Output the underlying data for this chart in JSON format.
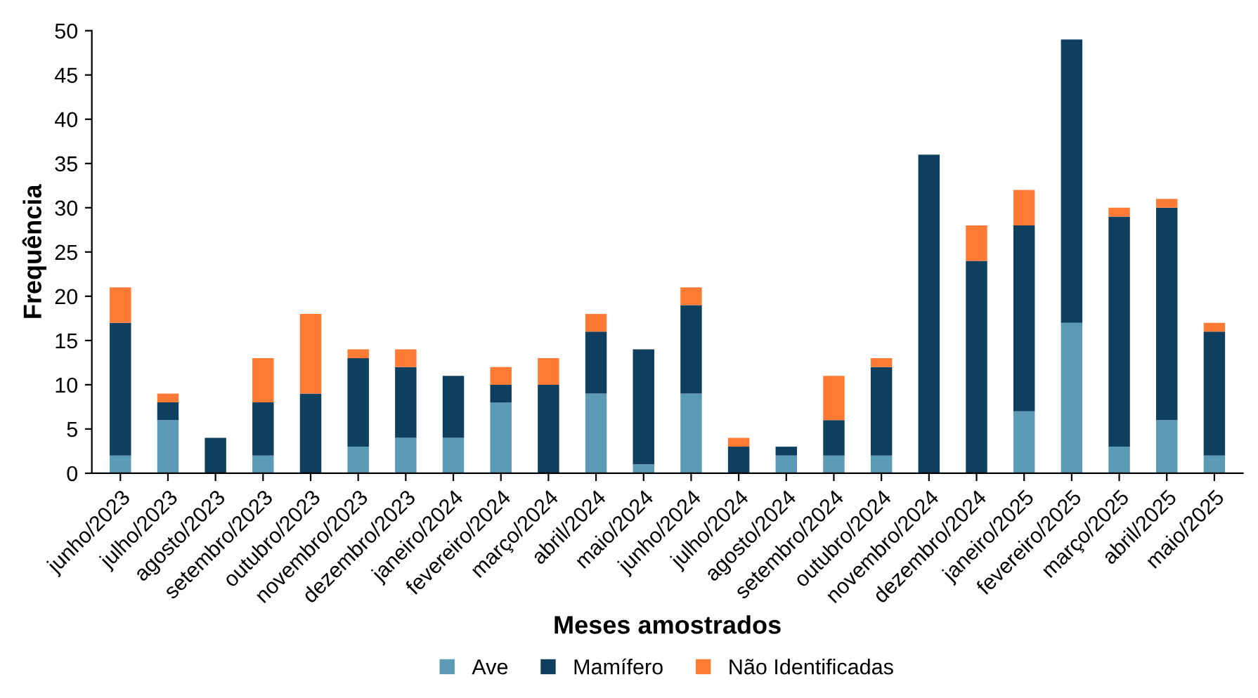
{
  "chart_data": {
    "type": "bar",
    "stacked": true,
    "xlabel": "Meses amostrados",
    "ylabel": "Frequência",
    "categories": [
      "junho/2023",
      "julho/2023",
      "agosto/2023",
      "setembro/2023",
      "outubro/2023",
      "novembro/2023",
      "dezembro/2023",
      "janeiro/2024",
      "fevereiro/2024",
      "março/2024",
      "abril/2024",
      "maio/2024",
      "junho/2024",
      "julho/2024",
      "agosto/2024",
      "setembro/2024",
      "outubro/2024",
      "novembro/2024",
      "dezembro/2024",
      "janeiro/2025",
      "fevereiro/2025",
      "março/2025",
      "abril/2025",
      "maio/2025"
    ],
    "series": [
      {
        "name": "Ave",
        "color": "#5b9bb5",
        "values": [
          2,
          6,
          0,
          2,
          0,
          3,
          4,
          4,
          8,
          0,
          9,
          1,
          9,
          0,
          2,
          2,
          2,
          0,
          0,
          7,
          17,
          3,
          6,
          2
        ]
      },
      {
        "name": "Mamífero",
        "color": "#0e3f5f",
        "values": [
          15,
          2,
          4,
          6,
          9,
          10,
          8,
          7,
          2,
          10,
          7,
          13,
          10,
          3,
          1,
          4,
          10,
          36,
          24,
          21,
          32,
          26,
          24,
          14
        ]
      },
      {
        "name": "Não Identificadas",
        "color": "#ff7b35",
        "values": [
          4,
          1,
          0,
          5,
          9,
          1,
          2,
          0,
          2,
          3,
          2,
          0,
          2,
          1,
          0,
          5,
          1,
          0,
          4,
          4,
          0,
          1,
          1,
          1
        ]
      }
    ],
    "ylim": [
      0,
      50
    ],
    "yticks": [
      0,
      5,
      10,
      15,
      20,
      25,
      30,
      35,
      40,
      45,
      50
    ],
    "grid": false,
    "legend": "bottom"
  }
}
